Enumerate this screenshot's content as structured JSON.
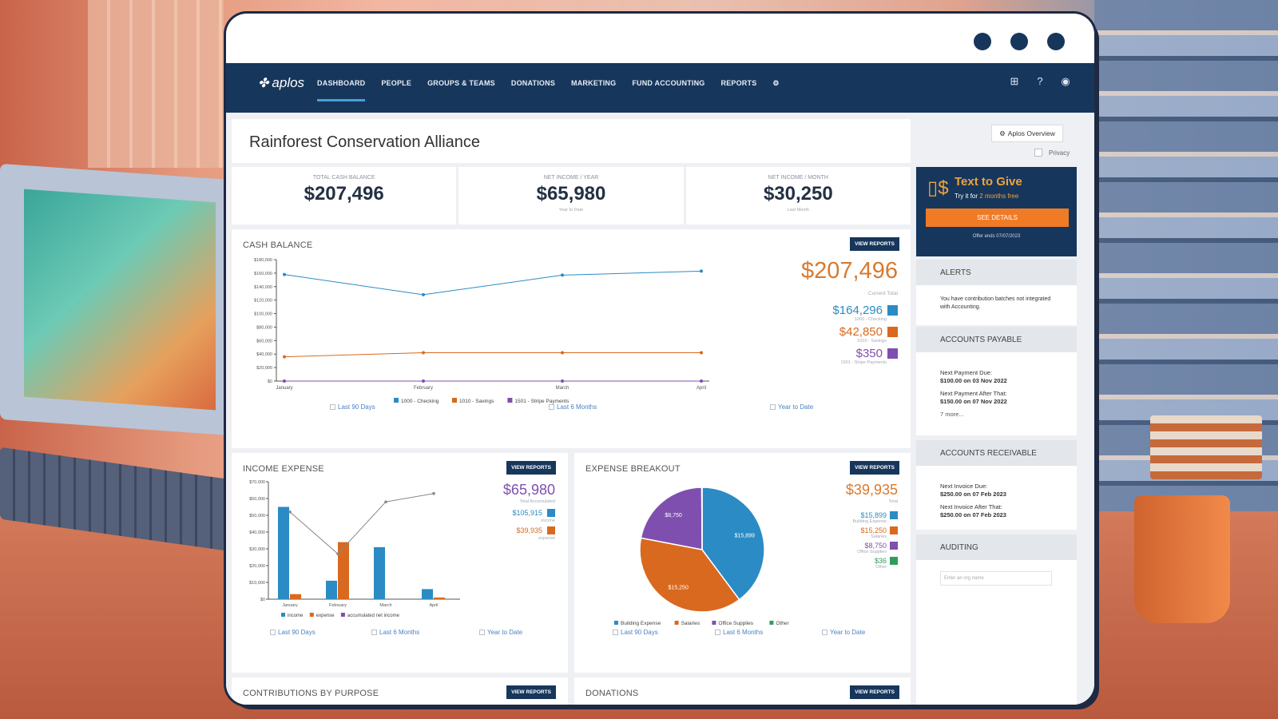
{
  "window": {
    "control_dots": 3
  },
  "nav": {
    "logo": "aplos",
    "items": [
      "DASHBOARD",
      "PEOPLE",
      "GROUPS & TEAMS",
      "DONATIONS",
      "MARKETING",
      "FUND ACCOUNTING",
      "REPORTS"
    ],
    "active": "DASHBOARD",
    "right_icons": [
      "grid-icon",
      "help-icon",
      "account-icon"
    ]
  },
  "header": {
    "org_name": "Rainforest Conservation Alliance",
    "overview_button": "Aplos Overview",
    "privacy_label": "Privacy"
  },
  "kpis": [
    {
      "label": "TOTAL CASH BALANCE",
      "value": "$207,496",
      "sub": ""
    },
    {
      "label": "NET INCOME / YEAR",
      "value": "$65,980",
      "sub": "Year to Date"
    },
    {
      "label": "NET INCOME / MONTH",
      "value": "$30,250",
      "sub": "Last Month"
    }
  ],
  "cash_balance": {
    "title": "CASH BALANCE",
    "view_reports": "VIEW REPORTS",
    "total": "$207,496",
    "total_caption": "Current Total",
    "accounts": [
      {
        "amount": "$164,296",
        "label": "1000 - Checking",
        "color": "#2b8bc4"
      },
      {
        "amount": "$42,850",
        "label": "1010 - Savings",
        "color": "#d9691f"
      },
      {
        "amount": "$350",
        "label": "1501 - Stripe Payments",
        "color": "#7f4fb0"
      }
    ],
    "ranges": [
      "Last 90 Days",
      "Last 6 Months",
      "Year to Date"
    ]
  },
  "income_expense": {
    "title": "INCOME EXPENSE",
    "view_reports": "VIEW REPORTS",
    "total": "$65,980",
    "total_caption": "Total Accumulated",
    "income": "$105,915",
    "income_label": "income",
    "expense": "$39,935",
    "expense_label": "expense",
    "ranges": [
      "Last 90 Days",
      "Last 6 Months",
      "Year to Date"
    ]
  },
  "expense_breakout": {
    "title": "EXPENSE BREAKOUT",
    "view_reports": "VIEW REPORTS",
    "total": "$39,935",
    "total_caption": "Total",
    "items": [
      {
        "amount": "$15,899",
        "label": "Building Expense",
        "color": "#2b8bc4"
      },
      {
        "amount": "$15,250",
        "label": "Salaries",
        "color": "#d9691f"
      },
      {
        "amount": "$8,750",
        "label": "Office Supplies",
        "color": "#7f4fb0"
      },
      {
        "amount": "$36",
        "label": "Other",
        "color": "#2e9e5b"
      }
    ],
    "ranges": [
      "Last 90 Days",
      "Last 6 Months",
      "Year to Date"
    ]
  },
  "bottom_panels": {
    "left_title": "CONTRIBUTIONS BY PURPOSE",
    "right_title": "DONATIONS",
    "view_reports": "VIEW REPORTS"
  },
  "text_to_give": {
    "title": "Text to Give",
    "subtitle_prefix": "Try it for",
    "subtitle_highlight": "2 months free",
    "button": "SEE DETAILS",
    "offer": "Offer ends 07/07/2023"
  },
  "alerts": {
    "title": "ALERTS",
    "message": "You have contribution batches not integrated with Accounting."
  },
  "accounts_payable": {
    "title": "ACCOUNTS PAYABLE",
    "next_label": "Next Payment Due:",
    "next_value": "$100.00 on 03 Nov 2022",
    "after_label": "Next Payment After That:",
    "after_value": "$150.00 on 07 Nov 2022",
    "more": "7 more..."
  },
  "accounts_receivable": {
    "title": "ACCOUNTS RECEIVABLE",
    "next_label": "Next Invoice Due:",
    "next_value": "$250.00 on 07 Feb 2023",
    "after_label": "Next Invoice After That:",
    "after_value": "$250.00 on 07 Feb 2023"
  },
  "auditing": {
    "title": "AUDITING",
    "placeholder": "Enter an org name"
  },
  "chart_data": [
    {
      "type": "line",
      "title": "CASH BALANCE",
      "categories": [
        "January",
        "February",
        "March",
        "April"
      ],
      "series": [
        {
          "name": "1000 - Checking",
          "values": [
            158000,
            128000,
            157000,
            163000
          ],
          "color": "#2b8bc4"
        },
        {
          "name": "1010 - Savings",
          "values": [
            36000,
            42000,
            42000,
            42000
          ],
          "color": "#d9691f"
        },
        {
          "name": "1501 - Stripe Payments",
          "values": [
            0,
            0,
            0,
            0
          ],
          "color": "#7f4fb0"
        }
      ],
      "ylim": [
        0,
        180000
      ],
      "yticks": [
        "$0",
        "$20,000",
        "$40,000",
        "$60,000",
        "$80,000",
        "$100,000",
        "$120,000",
        "$140,000",
        "$160,000",
        "$180,000"
      ],
      "legend": "bottom"
    },
    {
      "type": "bar",
      "title": "INCOME EXPENSE",
      "categories": [
        "January",
        "February",
        "March",
        "April"
      ],
      "series": [
        {
          "name": "income",
          "values": [
            55000,
            11000,
            31000,
            6000
          ],
          "color": "#2b8bc4"
        },
        {
          "name": "expense",
          "values": [
            3000,
            34000,
            0,
            1000
          ],
          "color": "#d9691f"
        },
        {
          "name": "accumulated net income",
          "values": [
            52000,
            27000,
            58000,
            63000
          ],
          "color": "#888888",
          "type": "line"
        }
      ],
      "ylim": [
        0,
        70000
      ],
      "yticks": [
        "$0",
        "$10,000",
        "$20,000",
        "$30,000",
        "$40,000",
        "$50,000",
        "$60,000",
        "$70,000"
      ],
      "legend": "bottom"
    },
    {
      "type": "pie",
      "title": "EXPENSE BREAKOUT",
      "labels": [
        "Building Expense",
        "Salaries",
        "Office Supplies",
        "Other"
      ],
      "values": [
        15899,
        15250,
        8750,
        36
      ],
      "slice_labels": [
        "$15,899",
        "$15,250",
        "$8,750",
        ""
      ],
      "colors": [
        "#2b8bc4",
        "#d9691f",
        "#7f4fb0",
        "#2e9e5b"
      ],
      "legend": "bottom"
    }
  ]
}
